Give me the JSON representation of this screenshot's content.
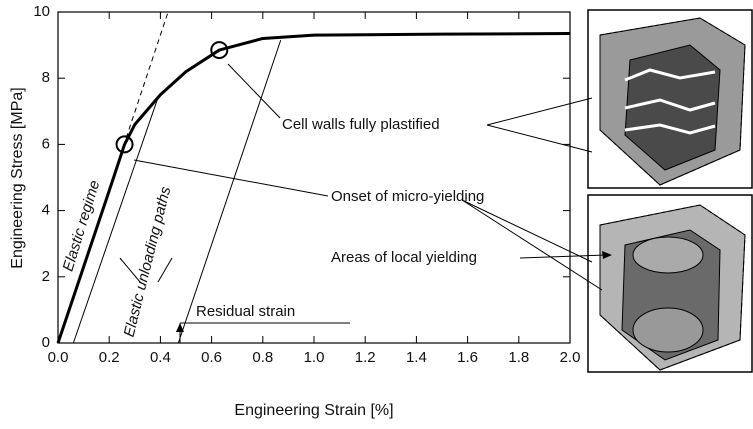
{
  "chart_data": {
    "type": "line",
    "x_label": "Engineering Strain [%]",
    "y_label": "Engineering Stress [MPa]",
    "xlim": [
      0,
      2.0
    ],
    "ylim": [
      0,
      10
    ],
    "xticks": [
      {
        "value": 0,
        "label": "0.0"
      },
      0.2,
      0.4,
      0.6,
      0.8,
      {
        "value": 1,
        "label": "1.0"
      },
      1.2,
      1.4,
      1.6,
      1.8,
      {
        "value": 2,
        "label": "2.0"
      }
    ],
    "yticks": [
      0,
      2,
      4,
      6,
      8,
      10
    ],
    "series": [
      {
        "color": "#000000",
        "line_style": "solid",
        "line_width": 3,
        "x": [
          0,
          0.1,
          0.2,
          0.26,
          0.3,
          0.4,
          0.5,
          0.63,
          0.8,
          1.0,
          1.5,
          2.0
        ],
        "values": [
          0,
          2.3,
          4.6,
          6.0,
          6.6,
          7.5,
          8.2,
          8.85,
          9.2,
          9.3,
          9.33,
          9.35
        ]
      },
      {
        "color": "#000000",
        "line_style": "dashed",
        "line_width": 1,
        "x": [
          0,
          0.43
        ],
        "values": [
          0,
          10
        ]
      },
      {
        "color": "#000000",
        "line_style": "solid",
        "line_width": 1,
        "x": [
          0.06,
          0.39
        ],
        "values": [
          0,
          7.4
        ]
      },
      {
        "color": "#000000",
        "line_style": "solid",
        "line_width": 1,
        "x": [
          0.47,
          0.87
        ],
        "values": [
          0,
          9.15
        ]
      }
    ],
    "markers": {
      "x": [
        0.26,
        0.63
      ],
      "values": [
        6.0,
        8.85
      ]
    },
    "annotations": [
      "Elastic regime",
      "Elastic unloading paths",
      "Cell walls fully plastified",
      "Onset of micro-yielding",
      "Areas of local yielding",
      "Residual strain"
    ]
  }
}
